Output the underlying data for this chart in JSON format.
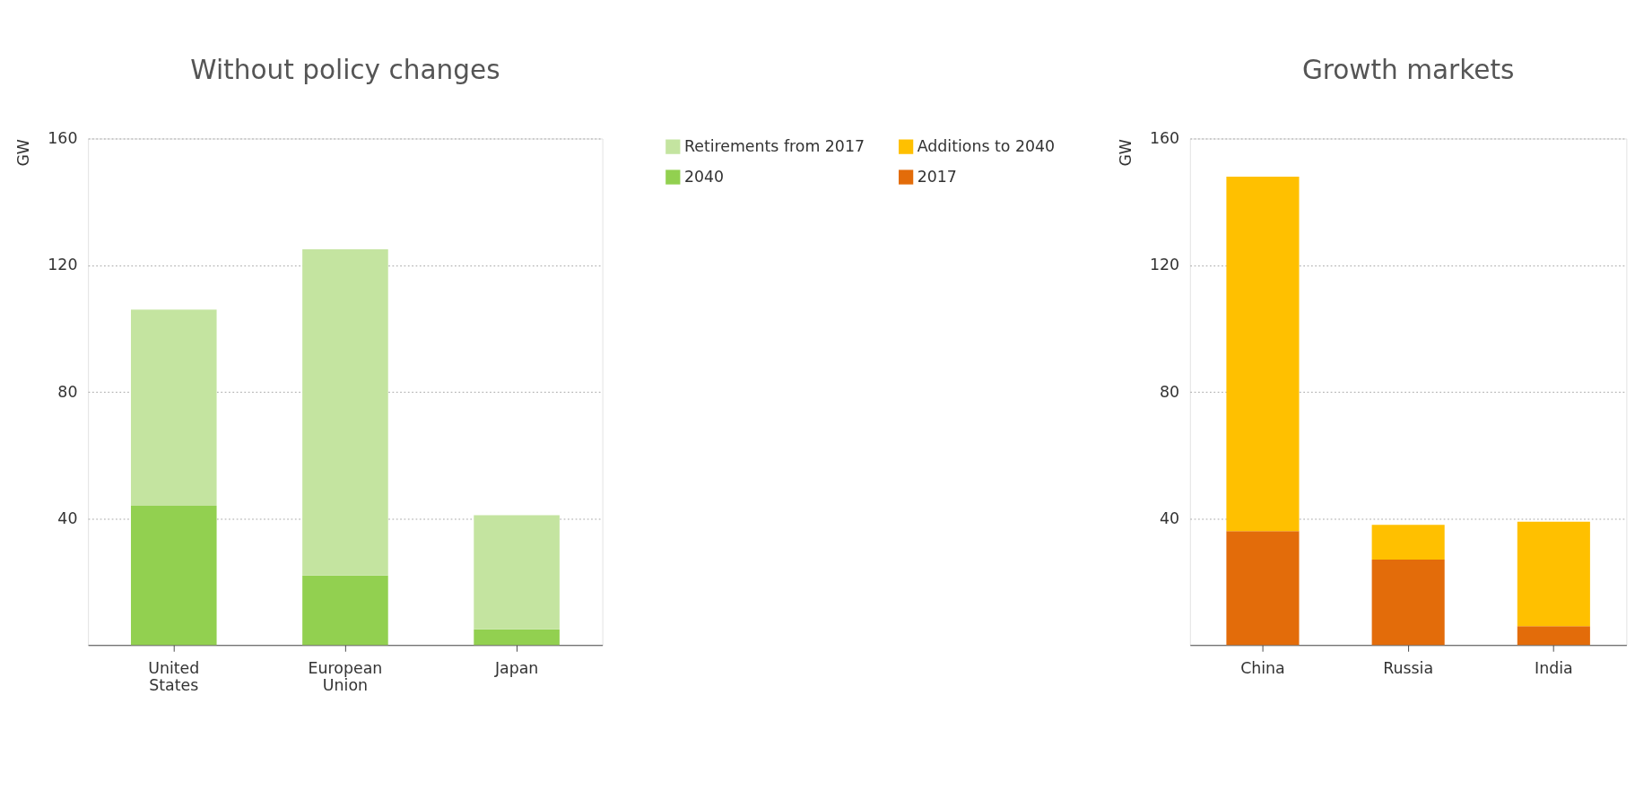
{
  "chart_data": [
    {
      "type": "bar",
      "title": "Without policy changes",
      "ylabel": "GW",
      "categories": [
        "United States",
        "European Union",
        "Japan"
      ],
      "stacked": true,
      "ylim": [
        0,
        160
      ],
      "yticks": [
        40,
        80,
        120,
        160
      ],
      "grid": "y",
      "legend": "right",
      "series": [
        {
          "name": "2040",
          "color": "#92d050",
          "values": [
            44,
            22,
            5
          ]
        },
        {
          "name": "Retirements from 2017",
          "color": "#c4e4a0",
          "values": [
            62,
            103,
            36
          ]
        }
      ]
    },
    {
      "type": "bar",
      "title": "Growth markets",
      "ylabel": "GW",
      "categories": [
        "China",
        "Russia",
        "India"
      ],
      "stacked": true,
      "ylim": [
        0,
        160
      ],
      "yticks": [
        40,
        80,
        120,
        160
      ],
      "grid": "y",
      "legend": "left",
      "series": [
        {
          "name": "2017",
          "color": "#e36c0a",
          "values": [
            36,
            27,
            6
          ]
        },
        {
          "name": "Additions to 2040",
          "color": "#ffc000",
          "values": [
            112,
            11,
            33
          ]
        }
      ]
    }
  ]
}
